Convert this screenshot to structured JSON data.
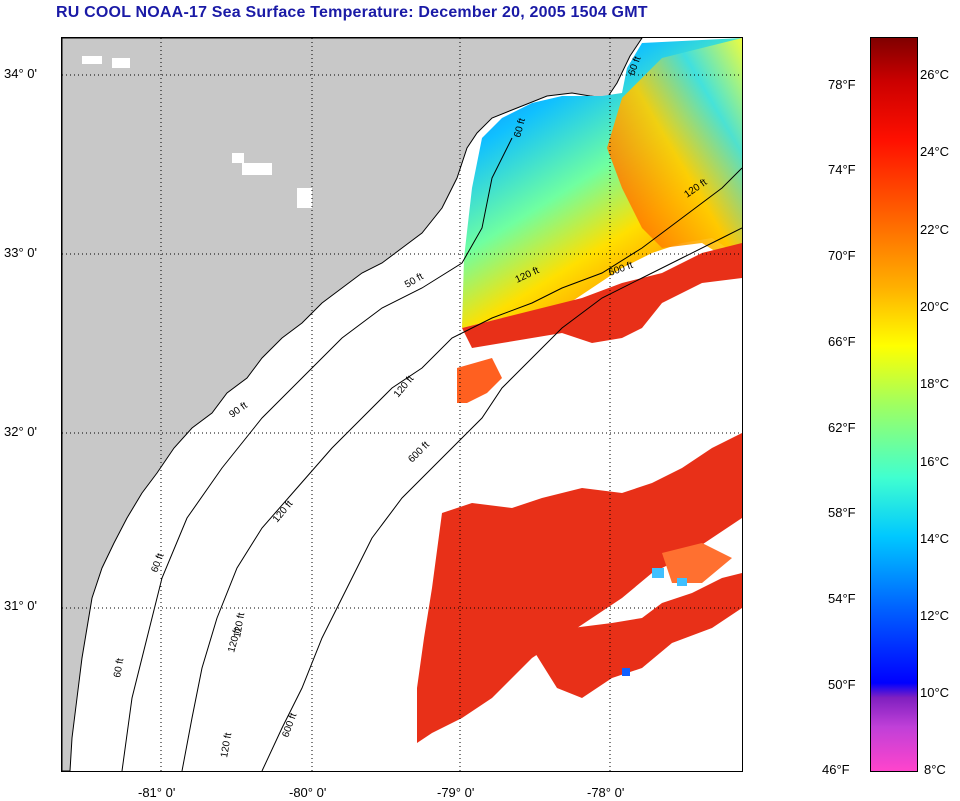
{
  "title": "RU COOL  NOAA-17  Sea Surface Temperature:  December 20, 2005 1504 GMT",
  "latitude_labels": [
    "34° 0'",
    "33° 0'",
    "32° 0'",
    "31° 0'"
  ],
  "longitude_labels": [
    "-81° 0'",
    "-80° 0'",
    "-79° 0'",
    "-78° 0'"
  ],
  "isobath_labels": [
    "60 ft",
    "60 ft",
    "120 ft",
    "120 ft",
    "600 ft",
    "50 ft",
    "90 ft",
    "120 ft",
    "600 ft",
    "120 ft",
    "60 ft",
    "120 ft",
    "600 ft",
    "60 ft",
    "120 ft",
    "120 ft"
  ],
  "colorbar": {
    "fahrenheit_labels": [
      "78°F",
      "74°F",
      "70°F",
      "66°F",
      "62°F",
      "58°F",
      "54°F",
      "50°F",
      "46°F"
    ],
    "celsius_labels": [
      "26°C",
      "24°C",
      "22°C",
      "20°C",
      "18°C",
      "16°C",
      "14°C",
      "12°C",
      "10°C",
      "8°C"
    ]
  },
  "colors": {
    "land": "#c8c8c8",
    "title": "#1a1aa6",
    "sst_warm": "#e83018",
    "sst_cool": "#1890ff"
  }
}
